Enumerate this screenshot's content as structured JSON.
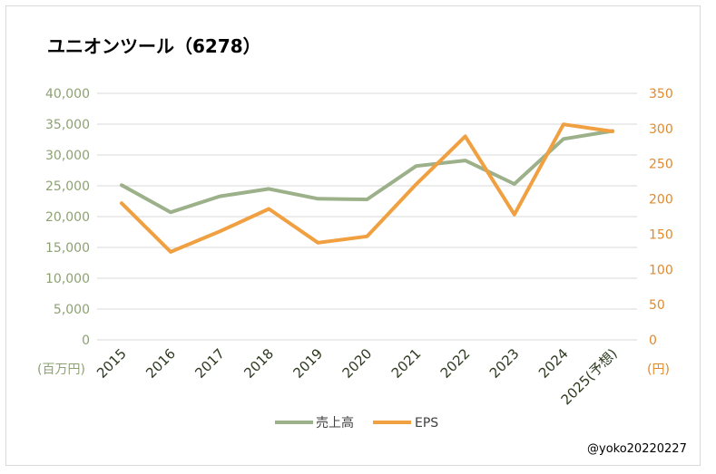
{
  "chart_data": {
    "type": "line",
    "title": "ユニオンツール（6278）",
    "categories": [
      "2015",
      "2016",
      "2017",
      "2018",
      "2019",
      "2020",
      "2021",
      "2022",
      "2023",
      "2024",
      "2025(予想)"
    ],
    "series": [
      {
        "name": "売上高",
        "axis": "left",
        "color": "#9cb08a",
        "values": [
          25100,
          20700,
          23300,
          24500,
          22900,
          22800,
          28200,
          29100,
          25300,
          32600,
          33900
        ]
      },
      {
        "name": "EPS",
        "axis": "right",
        "color": "#f0a040",
        "values": [
          194,
          125,
          154,
          186,
          138,
          147,
          221,
          289,
          178,
          306,
          296
        ]
      }
    ],
    "y_left": {
      "min": 0,
      "max": 40000,
      "step": 5000,
      "ticks": [
        "0",
        "5,000",
        "10,000",
        "15,000",
        "20,000",
        "25,000",
        "30,000",
        "35,000",
        "40,000"
      ],
      "unit": "(百万円)"
    },
    "y_right": {
      "min": 0,
      "max": 350,
      "step": 50,
      "ticks": [
        "0",
        "50",
        "100",
        "150",
        "200",
        "250",
        "300",
        "350"
      ],
      "unit": "(円)"
    },
    "grid": true,
    "legend": "bottom",
    "credit": "@yoko20220227"
  }
}
